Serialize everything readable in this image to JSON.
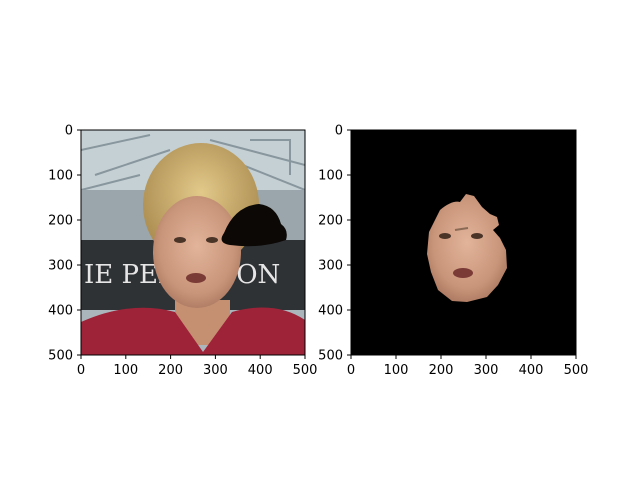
{
  "chart_data": [
    {
      "type": "image",
      "title": "",
      "xlabel": "",
      "ylabel": "",
      "xlim": [
        0,
        500
      ],
      "ylim": [
        500,
        0
      ],
      "xticks": [
        0,
        100,
        200,
        300,
        400,
        500
      ],
      "yticks": [
        0,
        100,
        200,
        300,
        400,
        500
      ],
      "content": "original photo with a black hat-shaped occlusion on the right side of the head",
      "caption_text": "IE PENTAGON"
    },
    {
      "type": "image",
      "title": "",
      "xlabel": "",
      "ylabel": "",
      "xlim": [
        0,
        500
      ],
      "ylim": [
        500,
        0
      ],
      "xticks": [
        0,
        100,
        200,
        300,
        400,
        500
      ],
      "yticks": [
        0,
        100,
        200,
        300,
        400,
        500
      ],
      "content": "segmented face mask on a black background",
      "background": "#000000"
    }
  ]
}
